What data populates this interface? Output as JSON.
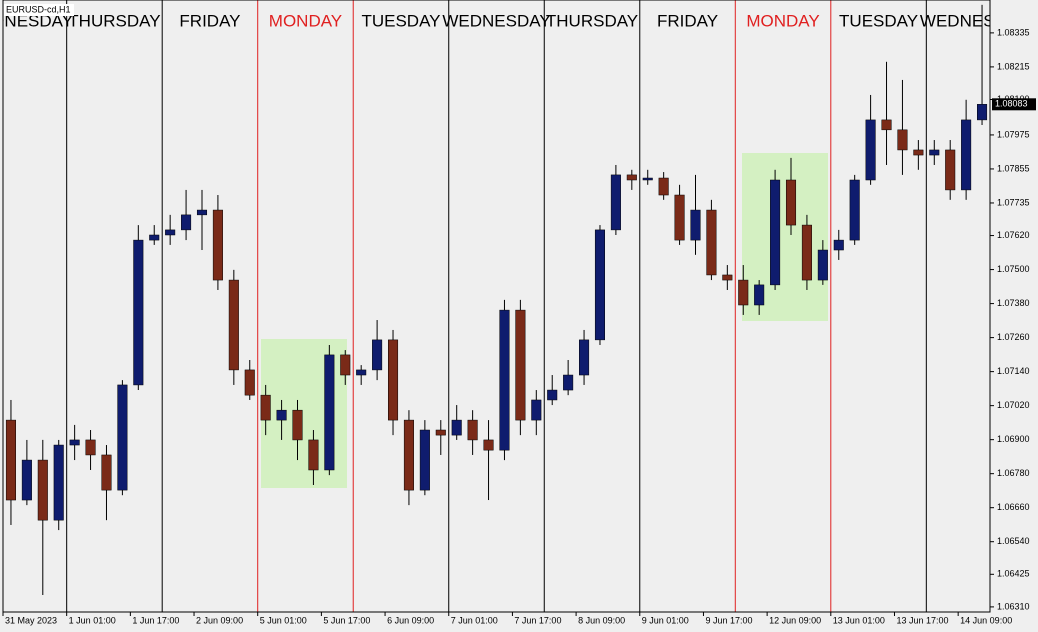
{
  "chart_data": {
    "type": "candlestick",
    "title": "EURUSD-cd,H1",
    "open": [
      1.06969,
      1.06687,
      1.06828,
      1.06616,
      1.06881,
      1.06899,
      1.06846,
      1.06722,
      1.07093,
      1.07604,
      1.07622,
      1.0764,
      1.07693,
      1.0771,
      1.07463,
      1.07146,
      1.07057,
      1.06969,
      1.07004,
      1.06899,
      1.06793,
      1.07199,
      1.07128,
      1.07146,
      1.07252,
      1.06969,
      1.06722,
      1.06934,
      1.06916,
      1.06969,
      1.06899,
      1.06863,
      1.07357,
      1.06969,
      1.0704,
      1.07075,
      1.07128,
      1.07252,
      1.0764,
      1.07834,
      1.07816,
      1.07823,
      1.07763,
      1.07604,
      1.0771,
      1.07481,
      1.07463,
      1.07375,
      1.07446,
      1.07816,
      1.07657,
      1.07463,
      1.07569,
      1.07604,
      1.07816,
      1.08028,
      1.07993,
      1.07922,
      1.07904,
      1.07922,
      1.07781,
      1.08028
    ],
    "high": [
      1.0704,
      1.06899,
      1.06899,
      1.06899,
      1.06952,
      1.06934,
      1.06881,
      1.0711,
      1.07657,
      1.07657,
      1.07693,
      1.07781,
      1.07781,
      1.07763,
      1.07499,
      1.07181,
      1.07093,
      1.0704,
      1.0704,
      1.06934,
      1.07234,
      1.07216,
      1.07163,
      1.07322,
      1.07287,
      1.07004,
      1.06969,
      1.06969,
      1.07022,
      1.07004,
      1.06969,
      1.07393,
      1.07393,
      1.07075,
      1.07128,
      1.07181,
      1.07287,
      1.07657,
      1.07869,
      1.07852,
      1.07852,
      1.07844,
      1.07799,
      1.07834,
      1.07746,
      1.07516,
      1.07516,
      1.07463,
      1.07852,
      1.07894,
      1.07693,
      1.07604,
      1.0764,
      1.07834,
      1.08116,
      1.08233,
      1.08169,
      1.07957,
      1.07957,
      1.07957,
      1.08099,
      1.08434
    ],
    "low": [
      1.06599,
      1.06669,
      1.06352,
      1.06581,
      1.06828,
      1.06793,
      1.06616,
      1.06704,
      1.07075,
      1.07587,
      1.07587,
      1.07604,
      1.07569,
      1.07428,
      1.07093,
      1.0704,
      1.06916,
      1.06899,
      1.06828,
      1.0674,
      1.06775,
      1.07093,
      1.07093,
      1.0711,
      1.06916,
      1.06669,
      1.06704,
      1.06846,
      1.06899,
      1.06846,
      1.06687,
      1.06828,
      1.06916,
      1.06916,
      1.07022,
      1.07057,
      1.07093,
      1.07234,
      1.07622,
      1.07781,
      1.07799,
      1.07746,
      1.07587,
      1.07552,
      1.07463,
      1.07428,
      1.0734,
      1.0734,
      1.07428,
      1.07622,
      1.07428,
      1.07446,
      1.07534,
      1.07587,
      1.07799,
      1.07869,
      1.07834,
      1.07852,
      1.07869,
      1.07746,
      1.07746,
      1.0801
    ],
    "close": [
      1.06687,
      1.06828,
      1.06616,
      1.06881,
      1.06899,
      1.06846,
      1.06722,
      1.07093,
      1.07604,
      1.07622,
      1.0764,
      1.07693,
      1.0771,
      1.07463,
      1.07146,
      1.07057,
      1.06969,
      1.07004,
      1.06899,
      1.06793,
      1.07199,
      1.07128,
      1.07146,
      1.07252,
      1.06969,
      1.06722,
      1.06934,
      1.06916,
      1.06969,
      1.06899,
      1.06863,
      1.07357,
      1.06969,
      1.0704,
      1.07075,
      1.07128,
      1.07252,
      1.0764,
      1.07834,
      1.07816,
      1.07823,
      1.07763,
      1.07604,
      1.0771,
      1.07481,
      1.07463,
      1.07375,
      1.07446,
      1.07816,
      1.07657,
      1.07463,
      1.07569,
      1.07604,
      1.07816,
      1.08028,
      1.07993,
      1.07922,
      1.07904,
      1.07922,
      1.07781,
      1.08028,
      1.08083
    ],
    "up_color": "#0f1c6e",
    "down_color": "#7a2a18",
    "wick_color": "#000000",
    "current_price": 1.08083,
    "xlim": [
      0,
      62
    ],
    "xticks": [
      {
        "value": 0,
        "label": "31 May 2023"
      },
      {
        "value": 4,
        "label": "1 Jun 01:00"
      },
      {
        "value": 8,
        "label": "1 Jun 17:00"
      },
      {
        "value": 12,
        "label": "2 Jun 09:00"
      },
      {
        "value": 16,
        "label": "5 Jun 01:00"
      },
      {
        "value": 20,
        "label": "5 Jun 17:00"
      },
      {
        "value": 24,
        "label": "6 Jun 09:00"
      },
      {
        "value": 28,
        "label": "7 Jun 01:00"
      },
      {
        "value": 32,
        "label": "7 Jun 17:00"
      },
      {
        "value": 36,
        "label": "8 Jun 09:00"
      },
      {
        "value": 40,
        "label": "9 Jun 01:00"
      },
      {
        "value": 44,
        "label": "9 Jun 17:00"
      },
      {
        "value": 48,
        "label": "12 Jun 09:00"
      },
      {
        "value": 52,
        "label": "13 Jun 01:00"
      },
      {
        "value": 56,
        "label": "13 Jun 17:00"
      },
      {
        "value": 60,
        "label": "14 Jun 09:00"
      }
    ],
    "ylim": [
      1.06292,
      1.08451
    ],
    "yticks": [
      1.08335,
      1.08215,
      {
        "value": 1.081,
        "label": "1.08100"
      },
      1.07975,
      1.07855,
      1.07735,
      {
        "value": 1.0762,
        "label": "1.07620"
      },
      {
        "value": 1.075,
        "label": "1.07500"
      },
      {
        "value": 1.0738,
        "label": "1.07380"
      },
      {
        "value": 1.0726,
        "label": "1.07260"
      },
      {
        "value": 1.0714,
        "label": "1.07140"
      },
      {
        "value": 1.0702,
        "label": "1.07020"
      },
      {
        "value": 1.069,
        "label": "1.06900"
      },
      {
        "value": 1.0678,
        "label": "1.06780"
      },
      {
        "value": 1.0666,
        "label": "1.06660"
      },
      {
        "value": 1.0654,
        "label": "1.06540"
      },
      1.06425,
      {
        "value": 1.0631,
        "label": "1.06310"
      }
    ],
    "separators": [
      {
        "x": 4,
        "color": "#000000"
      },
      {
        "x": 10,
        "color": "#000000"
      },
      {
        "x": 16,
        "color": "#e02020"
      },
      {
        "x": 22,
        "color": "#e02020"
      },
      {
        "x": 28,
        "color": "#000000"
      },
      {
        "x": 34,
        "color": "#000000"
      },
      {
        "x": 40,
        "color": "#000000"
      },
      {
        "x": 46,
        "color": "#e02020"
      },
      {
        "x": 52,
        "color": "#e02020"
      },
      {
        "x": 58,
        "color": "#000000"
      }
    ],
    "day_labels": [
      {
        "x": 1,
        "label": "WEDNESDAY",
        "color": "#000000"
      },
      {
        "x": 7,
        "label": "THURSDAY",
        "color": "#000000"
      },
      {
        "x": 13,
        "label": "FRIDAY",
        "color": "#000000"
      },
      {
        "x": 19,
        "label": "MONDAY",
        "color": "#e02020"
      },
      {
        "x": 25,
        "label": "TUESDAY",
        "color": "#000000"
      },
      {
        "x": 31,
        "label": "WEDNESDAY",
        "color": "#000000"
      },
      {
        "x": 37,
        "label": "THURSDAY",
        "color": "#000000"
      },
      {
        "x": 43,
        "label": "FRIDAY",
        "color": "#000000"
      },
      {
        "x": 49,
        "label": "MONDAY",
        "color": "#e02020"
      },
      {
        "x": 55,
        "label": "TUESDAY",
        "color": "#000000"
      },
      {
        "x": 61,
        "label": "WEDNESDAY",
        "color": "#000000"
      }
    ]
  }
}
